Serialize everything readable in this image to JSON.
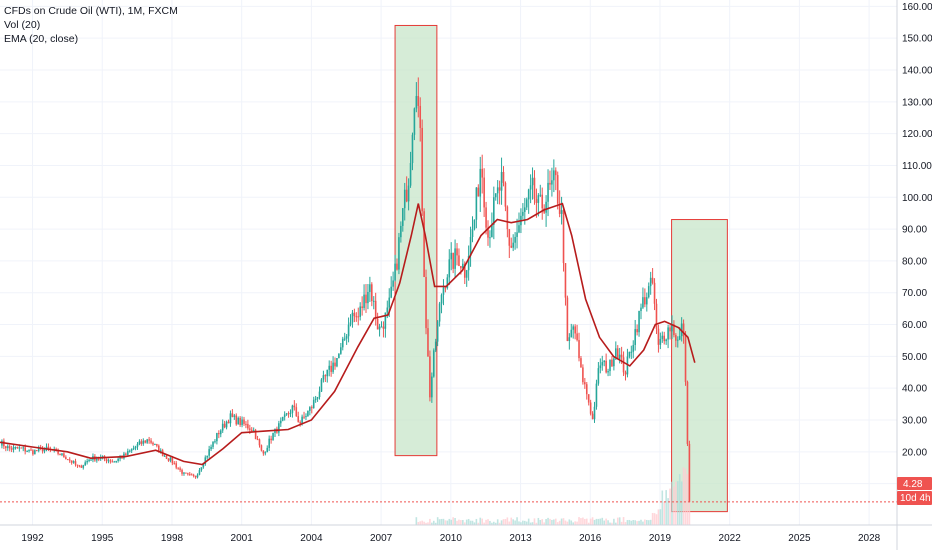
{
  "legend": {
    "title": "CFDs on Crude Oil (WTI), 1M, FXCM",
    "volume": "Vol (20)",
    "ema": "EMA (20, close)"
  },
  "last_price": {
    "value": 4.28,
    "label": "4.28",
    "countdown": "10d 4h"
  },
  "colors": {
    "up": "#26a69a",
    "down": "#ef5350",
    "ema": "#b71c1c",
    "box_fill": "#c8e6c9",
    "box_stroke": "#e53935",
    "grid": "#f0f3fa",
    "price_line": "#ef5350",
    "price_tag": "#ef5350",
    "countdown_tag": "#ef5350"
  },
  "chart_data": {
    "type": "candlestick",
    "x_range": [
      1990.6,
      2029.2
    ],
    "y_range": [
      -3,
      162
    ],
    "x_ticks": [
      {
        "value": 1992,
        "label": "1992"
      },
      {
        "value": 1995,
        "label": "1995"
      },
      {
        "value": 1998,
        "label": "1998"
      },
      {
        "value": 2001,
        "label": "2001"
      },
      {
        "value": 2004,
        "label": "2004"
      },
      {
        "value": 2007,
        "label": "2007"
      },
      {
        "value": 2010,
        "label": "2010"
      },
      {
        "value": 2013,
        "label": "2013"
      },
      {
        "value": 2016,
        "label": "2016"
      },
      {
        "value": 2019,
        "label": "2019"
      },
      {
        "value": 2022,
        "label": "2022"
      },
      {
        "value": 2025,
        "label": "2025"
      },
      {
        "value": 2028,
        "label": "2028"
      }
    ],
    "y_ticks": [
      {
        "value": 160,
        "label": "160.00"
      },
      {
        "value": 150,
        "label": "150.00"
      },
      {
        "value": 140,
        "label": "140.00"
      },
      {
        "value": 130,
        "label": "130.00"
      },
      {
        "value": 120,
        "label": "120.00"
      },
      {
        "value": 110,
        "label": "110.00"
      },
      {
        "value": 100,
        "label": "100.00"
      },
      {
        "value": 90,
        "label": "90.00"
      },
      {
        "value": 80,
        "label": "80.00"
      },
      {
        "value": 70,
        "label": "70.00"
      },
      {
        "value": 60,
        "label": "60.00"
      },
      {
        "value": 50,
        "label": "50.00"
      },
      {
        "value": 40,
        "label": "40.00"
      },
      {
        "value": 30,
        "label": "30.00"
      },
      {
        "value": 20,
        "label": "20.00"
      },
      {
        "value": 10,
        "label": "10.00"
      }
    ],
    "anchors": [
      [
        1990.6,
        23
      ],
      [
        1991.0,
        21
      ],
      [
        1991.5,
        21
      ],
      [
        1992.0,
        20
      ],
      [
        1992.5,
        21
      ],
      [
        1993.0,
        20
      ],
      [
        1993.5,
        18
      ],
      [
        1994.0,
        15
      ],
      [
        1994.5,
        18
      ],
      [
        1995.0,
        18
      ],
      [
        1995.5,
        17
      ],
      [
        1996.0,
        19
      ],
      [
        1996.5,
        22
      ],
      [
        1997.0,
        24
      ],
      [
        1997.5,
        20
      ],
      [
        1998.0,
        17
      ],
      [
        1998.5,
        13
      ],
      [
        1999.0,
        12
      ],
      [
        1999.5,
        19
      ],
      [
        2000.0,
        26
      ],
      [
        2000.5,
        31
      ],
      [
        2001.0,
        29
      ],
      [
        2001.5,
        27
      ],
      [
        2001.9,
        19
      ],
      [
        2002.3,
        25
      ],
      [
        2002.8,
        30
      ],
      [
        2003.2,
        34
      ],
      [
        2003.5,
        29
      ],
      [
        2004.0,
        34
      ],
      [
        2004.5,
        42
      ],
      [
        2004.9,
        47
      ],
      [
        2005.3,
        52
      ],
      [
        2005.7,
        63
      ],
      [
        2006.0,
        62
      ],
      [
        2006.5,
        73
      ],
      [
        2006.9,
        58
      ],
      [
        2007.3,
        64
      ],
      [
        2007.6,
        76
      ],
      [
        2007.9,
        93
      ],
      [
        2008.2,
        108
      ],
      [
        2008.5,
        140
      ],
      [
        2008.7,
        115
      ],
      [
        2008.9,
        65
      ],
      [
        2009.1,
        38
      ],
      [
        2009.3,
        52
      ],
      [
        2009.6,
        70
      ],
      [
        2009.9,
        78
      ],
      [
        2010.3,
        82
      ],
      [
        2010.6,
        77
      ],
      [
        2011.0,
        92
      ],
      [
        2011.3,
        112
      ],
      [
        2011.6,
        88
      ],
      [
        2011.9,
        98
      ],
      [
        2012.2,
        105
      ],
      [
        2012.5,
        84
      ],
      [
        2012.8,
        88
      ],
      [
        2013.1,
        94
      ],
      [
        2013.5,
        102
      ],
      [
        2013.8,
        96
      ],
      [
        2014.1,
        100
      ],
      [
        2014.5,
        105
      ],
      [
        2014.8,
        92
      ],
      [
        2015.0,
        53
      ],
      [
        2015.3,
        60
      ],
      [
        2015.6,
        45
      ],
      [
        2015.9,
        37
      ],
      [
        2016.1,
        30
      ],
      [
        2016.4,
        48
      ],
      [
        2016.8,
        46
      ],
      [
        2017.1,
        53
      ],
      [
        2017.5,
        45
      ],
      [
        2017.9,
        57
      ],
      [
        2018.3,
        68
      ],
      [
        2018.7,
        73
      ],
      [
        2018.9,
        52
      ],
      [
        2019.1,
        56
      ],
      [
        2019.5,
        60
      ],
      [
        2019.8,
        54
      ],
      [
        2020.0,
        61
      ],
      [
        2020.2,
        20
      ],
      [
        2020.3,
        4.28
      ]
    ],
    "ema_points": [
      [
        1990.6,
        23
      ],
      [
        1992.0,
        21.5
      ],
      [
        1993.5,
        20
      ],
      [
        1994.5,
        18
      ],
      [
        1996.0,
        18.5
      ],
      [
        1997.3,
        20.5
      ],
      [
        1998.5,
        17
      ],
      [
        1999.3,
        16
      ],
      [
        2000.2,
        21
      ],
      [
        2001.0,
        26
      ],
      [
        2002.0,
        26.5
      ],
      [
        2003.0,
        27
      ],
      [
        2004.0,
        30
      ],
      [
        2005.0,
        39
      ],
      [
        2006.0,
        53
      ],
      [
        2006.7,
        62
      ],
      [
        2007.3,
        63
      ],
      [
        2007.8,
        73
      ],
      [
        2008.3,
        88
      ],
      [
        2008.6,
        98
      ],
      [
        2008.9,
        88
      ],
      [
        2009.3,
        72
      ],
      [
        2009.8,
        72
      ],
      [
        2010.5,
        77
      ],
      [
        2011.3,
        88
      ],
      [
        2012.0,
        93
      ],
      [
        2012.6,
        92
      ],
      [
        2013.3,
        93
      ],
      [
        2014.0,
        96
      ],
      [
        2014.8,
        98
      ],
      [
        2015.2,
        88
      ],
      [
        2015.8,
        68
      ],
      [
        2016.4,
        56
      ],
      [
        2017.0,
        50
      ],
      [
        2017.7,
        47
      ],
      [
        2018.3,
        52
      ],
      [
        2018.8,
        60
      ],
      [
        2019.2,
        61
      ],
      [
        2019.8,
        59
      ],
      [
        2020.2,
        56
      ],
      [
        2020.5,
        48
      ]
    ],
    "highlight_boxes": [
      {
        "x0": 2007.6,
        "x1": 2009.4,
        "y0": 18.8,
        "y1": 154
      },
      {
        "x0": 2019.5,
        "x1": 2021.9,
        "y0": 1.2,
        "y1": 93
      }
    ]
  }
}
